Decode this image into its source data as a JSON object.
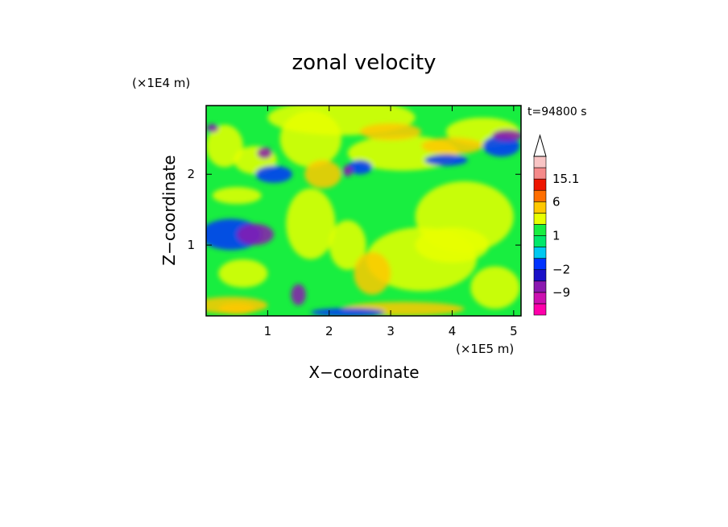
{
  "chart_data": {
    "type": "heatmap",
    "title": "zonal velocity",
    "xlabel": "X−coordinate",
    "ylabel": "Z−coordinate",
    "x_unit": "(×1E5 m)",
    "y_unit": "(×1E4 m)",
    "time_label": "t=94800 s",
    "xlim": [
      0,
      5.12
    ],
    "ylim": [
      0,
      2.97
    ],
    "x_ticks": [
      1,
      2,
      3,
      4,
      5
    ],
    "y_ticks": [
      1,
      2
    ],
    "colorbar": {
      "levels": [
        -15.1,
        -12,
        -9,
        -6,
        -2,
        -1,
        0,
        1,
        2,
        4,
        6,
        9,
        12,
        15.1
      ],
      "colors": [
        "#ff00aa",
        "#cc10b0",
        "#8b18b0",
        "#1a10c8",
        "#0033ff",
        "#00c8f0",
        "#00e86a",
        "#18ee40",
        "#e8ff00",
        "#ffc800",
        "#ff6e00",
        "#ee1500",
        "#f58a8a",
        "#f8c4c4"
      ],
      "tick_labels": [
        "15.1",
        "6",
        "1",
        "−2",
        "−9"
      ],
      "tick_values": [
        15.1,
        6,
        1,
        -2,
        -9
      ],
      "extend": "max"
    },
    "field_samples": [
      {
        "x": 0.5,
        "z": 1.2,
        "value": -7
      },
      {
        "x": 1.3,
        "z": 0.3,
        "value": -9
      },
      {
        "x": 3.0,
        "z": 0.8,
        "value": 2
      },
      {
        "x": 3.8,
        "z": 1.4,
        "value": 1
      },
      {
        "x": 4.5,
        "z": 2.5,
        "value": 3
      }
    ]
  }
}
